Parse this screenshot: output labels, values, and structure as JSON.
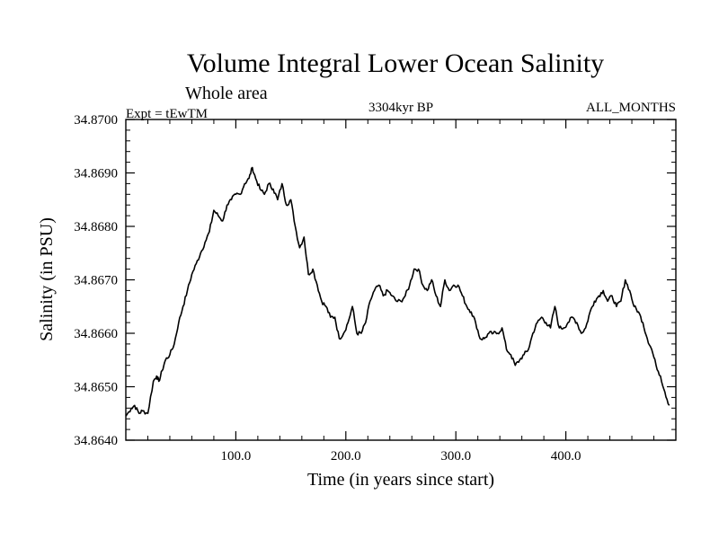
{
  "chart_data": {
    "type": "line",
    "title": "Volume Integral Lower Ocean Salinity",
    "subtitle": "Whole area",
    "left_label": "Expt = tEwTM",
    "center_label": "3304kyr BP",
    "right_label": "ALL_MONTHS",
    "xlabel": "Time (in years since start)",
    "ylabel": "Salinity (in PSU)",
    "xlim": [
      0,
      500
    ],
    "ylim": [
      34.864,
      34.87
    ],
    "x_ticks": [
      100,
      200,
      300,
      400
    ],
    "x_tick_labels": [
      "100.0",
      "200.0",
      "300.0",
      "400.0"
    ],
    "y_ticks": [
      34.864,
      34.865,
      34.866,
      34.867,
      34.868,
      34.869,
      34.87
    ],
    "y_tick_labels": [
      "34.8640",
      "34.8650",
      "34.8660",
      "34.8670",
      "34.8680",
      "34.8690",
      "34.8700"
    ],
    "series": [
      {
        "name": "Salinity",
        "x": [
          0,
          5,
          8,
          12,
          15,
          20,
          25,
          28,
          30,
          33,
          36,
          40,
          44,
          48,
          52,
          56,
          60,
          64,
          68,
          72,
          76,
          80,
          84,
          88,
          92,
          96,
          100,
          104,
          108,
          112,
          115,
          118,
          122,
          126,
          130,
          134,
          138,
          142,
          146,
          150,
          154,
          158,
          162,
          166,
          170,
          174,
          178,
          182,
          186,
          190,
          194,
          198,
          202,
          206,
          210,
          214,
          218,
          222,
          226,
          230,
          234,
          238,
          242,
          246,
          250,
          254,
          258,
          262,
          266,
          270,
          274,
          278,
          282,
          286,
          290,
          294,
          298,
          302,
          306,
          310,
          314,
          318,
          322,
          326,
          330,
          334,
          338,
          342,
          346,
          350,
          354,
          358,
          362,
          366,
          370,
          374,
          378,
          382,
          386,
          390,
          394,
          398,
          402,
          406,
          410,
          414,
          418,
          422,
          426,
          430,
          434,
          438,
          442,
          446,
          450,
          454,
          458,
          462,
          466,
          470,
          474,
          478,
          482,
          486,
          490,
          494
        ],
        "values": [
          34.86445,
          34.8646,
          34.86465,
          34.8645,
          34.86455,
          34.8645,
          34.8651,
          34.8652,
          34.8651,
          34.8653,
          34.8655,
          34.8656,
          34.8658,
          34.8662,
          34.8665,
          34.8668,
          34.8671,
          34.8673,
          34.8675,
          34.8677,
          34.8679,
          34.8683,
          34.8682,
          34.8681,
          34.8684,
          34.8685,
          34.8686,
          34.8686,
          34.8688,
          34.8689,
          34.8691,
          34.8689,
          34.8687,
          34.8686,
          34.8688,
          34.8687,
          34.8685,
          34.8688,
          34.8684,
          34.8685,
          34.868,
          34.8676,
          34.8678,
          34.8671,
          34.8672,
          34.8669,
          34.8666,
          34.8665,
          34.8663,
          34.8663,
          34.8659,
          34.866,
          34.8662,
          34.8665,
          34.866,
          34.866,
          34.8662,
          34.8666,
          34.8668,
          34.8669,
          34.8667,
          34.8668,
          34.8667,
          34.8666,
          34.8666,
          34.8667,
          34.8669,
          34.8672,
          34.8672,
          34.8669,
          34.8668,
          34.867,
          34.8667,
          34.8665,
          34.867,
          34.8668,
          34.8669,
          34.8669,
          34.8667,
          34.8665,
          34.8664,
          34.8662,
          34.8659,
          34.8659,
          34.866,
          34.866,
          34.866,
          34.8661,
          34.8657,
          34.8656,
          34.8654,
          34.8655,
          34.8656,
          34.8657,
          34.866,
          34.8662,
          34.8663,
          34.8662,
          34.8661,
          34.8665,
          34.8661,
          34.8661,
          34.8662,
          34.8663,
          34.8662,
          34.866,
          34.8661,
          34.8664,
          34.8666,
          34.8667,
          34.8668,
          34.8666,
          34.8667,
          34.8665,
          34.8666,
          34.867,
          34.8668,
          34.8665,
          34.8664,
          34.8662,
          34.8659,
          34.8657,
          34.8654,
          34.8652,
          34.8649,
          34.86465
        ]
      }
    ]
  }
}
